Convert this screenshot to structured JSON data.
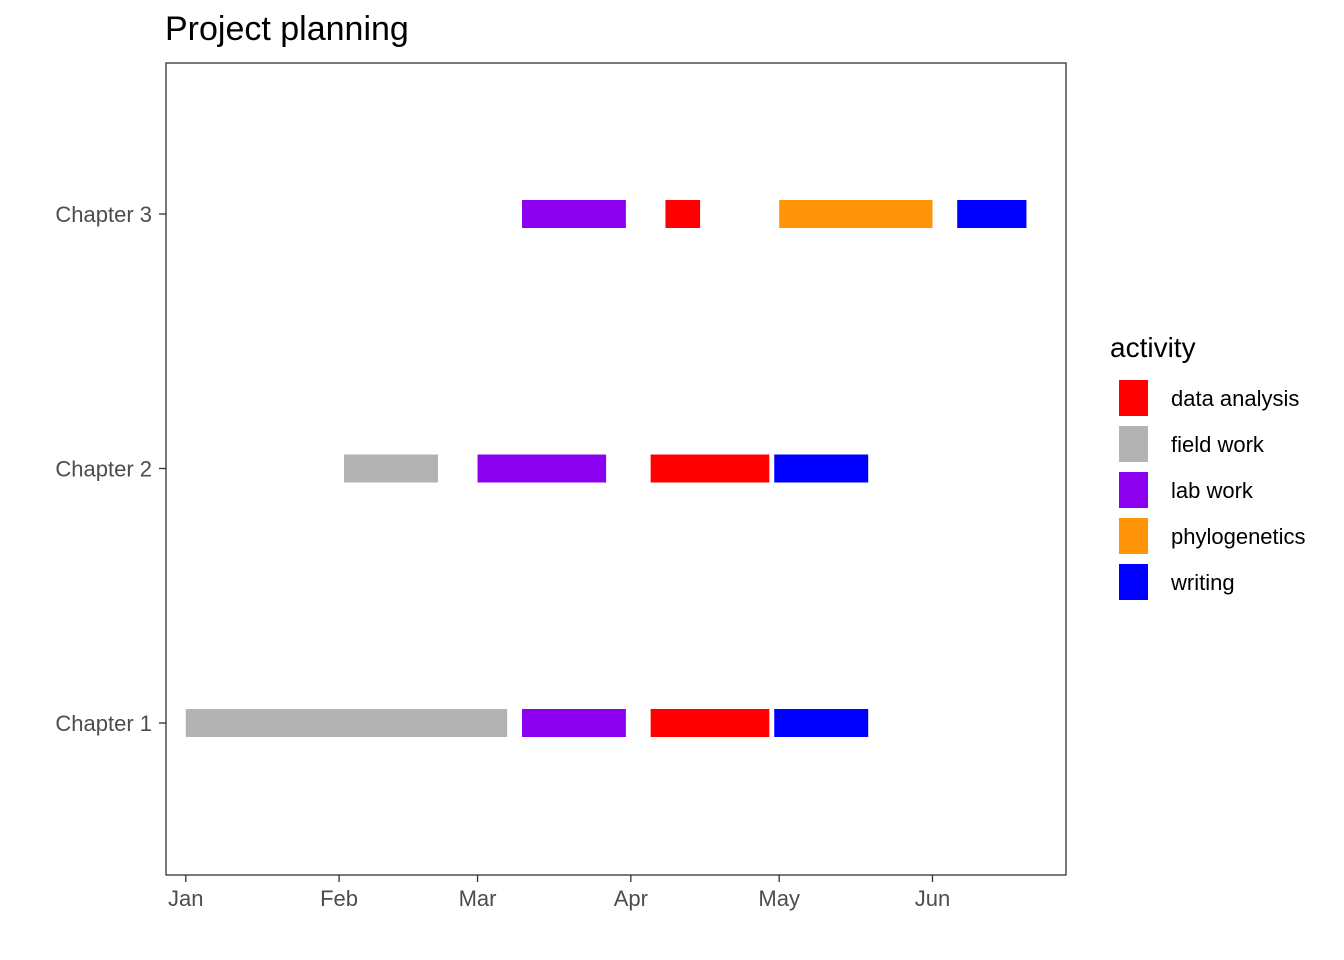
{
  "chart_data": {
    "type": "gantt",
    "title": "Project planning",
    "xlabel": "",
    "ylabel": "",
    "x_axis": {
      "type": "date",
      "range": [
        "2020-12-28",
        "2021-06-28"
      ],
      "ticks": [
        {
          "label": "Jan",
          "date": "2021-01-01"
        },
        {
          "label": "Feb",
          "date": "2021-02-01"
        },
        {
          "label": "Mar",
          "date": "2021-03-01"
        },
        {
          "label": "Apr",
          "date": "2021-04-01"
        },
        {
          "label": "May",
          "date": "2021-05-01"
        },
        {
          "label": "Jun",
          "date": "2021-06-01"
        }
      ]
    },
    "categories": [
      "Chapter 1",
      "Chapter 2",
      "Chapter 3"
    ],
    "grid": false,
    "legend": {
      "title": "activity",
      "position": "right",
      "items": [
        {
          "label": "data analysis",
          "color": "#FF0000"
        },
        {
          "label": "field work",
          "color": "#B3B3B3"
        },
        {
          "label": "lab work",
          "color": "#8B00EE"
        },
        {
          "label": "phylogenetics",
          "color": "#FF9408"
        },
        {
          "label": "writing",
          "color": "#0000FF"
        }
      ]
    },
    "tasks": [
      {
        "category": "Chapter 1",
        "activity": "field work",
        "start": "2021-01-01",
        "end": "2021-03-07"
      },
      {
        "category": "Chapter 1",
        "activity": "lab work",
        "start": "2021-03-10",
        "end": "2021-03-31"
      },
      {
        "category": "Chapter 1",
        "activity": "data analysis",
        "start": "2021-04-05",
        "end": "2021-04-29"
      },
      {
        "category": "Chapter 1",
        "activity": "writing",
        "start": "2021-04-30",
        "end": "2021-05-19"
      },
      {
        "category": "Chapter 2",
        "activity": "field work",
        "start": "2021-02-02",
        "end": "2021-02-21"
      },
      {
        "category": "Chapter 2",
        "activity": "lab work",
        "start": "2021-03-01",
        "end": "2021-03-27"
      },
      {
        "category": "Chapter 2",
        "activity": "data analysis",
        "start": "2021-04-05",
        "end": "2021-04-29"
      },
      {
        "category": "Chapter 2",
        "activity": "writing",
        "start": "2021-04-30",
        "end": "2021-05-19"
      },
      {
        "category": "Chapter 3",
        "activity": "lab work",
        "start": "2021-03-10",
        "end": "2021-03-31"
      },
      {
        "category": "Chapter 3",
        "activity": "data analysis",
        "start": "2021-04-08",
        "end": "2021-04-15"
      },
      {
        "category": "Chapter 3",
        "activity": "phylogenetics",
        "start": "2021-05-01",
        "end": "2021-06-01"
      },
      {
        "category": "Chapter 3",
        "activity": "writing",
        "start": "2021-06-06",
        "end": "2021-06-20"
      }
    ]
  }
}
